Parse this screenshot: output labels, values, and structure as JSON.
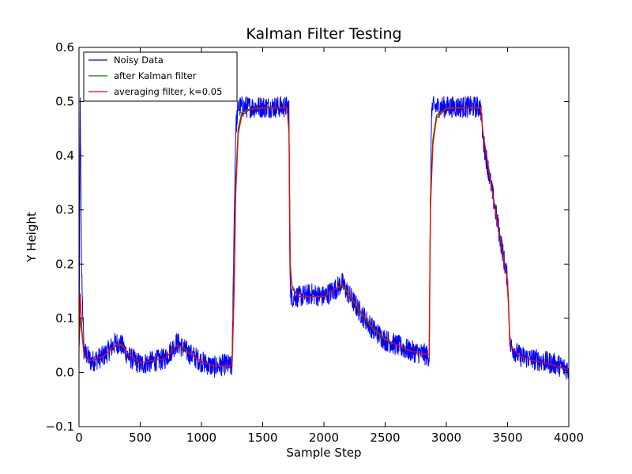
{
  "chart_data": {
    "type": "line",
    "title": "Kalman Filter Testing",
    "xlabel": "Sample Step",
    "ylabel": "Y Height",
    "xlim": [
      0,
      4000
    ],
    "ylim": [
      -0.1,
      0.6
    ],
    "xticks": [
      0,
      500,
      1000,
      1500,
      2000,
      2500,
      3000,
      3500,
      4000
    ],
    "xtick_labels": [
      "0",
      "500",
      "1000",
      "1500",
      "2000",
      "2500",
      "3000",
      "3500",
      "4000"
    ],
    "yticks": [
      -0.1,
      0.0,
      0.1,
      0.2,
      0.3,
      0.4,
      0.5,
      0.6
    ],
    "ytick_labels": [
      "−0.1",
      "0.0",
      "0.1",
      "0.2",
      "0.3",
      "0.4",
      "0.5",
      "0.6"
    ],
    "grid": false,
    "legend_position": "top-left",
    "series": [
      {
        "name": "Noisy Data",
        "color": "#0000ff",
        "noise_amplitude": 0.02,
        "x": [
          0,
          10,
          20,
          40,
          100,
          200,
          300,
          350,
          400,
          500,
          600,
          700,
          800,
          850,
          900,
          1000,
          1100,
          1200,
          1250,
          1265,
          1280,
          1300,
          1350,
          1400,
          1500,
          1600,
          1700,
          1715,
          1720,
          1730,
          1750,
          1800,
          1900,
          2000,
          2100,
          2150,
          2200,
          2300,
          2400,
          2500,
          2600,
          2700,
          2800,
          2860,
          2870,
          2880,
          2890,
          2900,
          3000,
          3100,
          3200,
          3280,
          3300,
          3400,
          3500,
          3520,
          3600,
          3700,
          3800,
          3900,
          4000
        ],
        "y": [
          0.02,
          0.5,
          0.2,
          0.04,
          0.02,
          0.03,
          0.055,
          0.05,
          0.03,
          0.015,
          0.02,
          0.025,
          0.055,
          0.045,
          0.035,
          0.02,
          0.01,
          0.015,
          0.01,
          0.25,
          0.45,
          0.49,
          0.49,
          0.49,
          0.49,
          0.49,
          0.49,
          0.49,
          0.22,
          0.14,
          0.14,
          0.14,
          0.145,
          0.14,
          0.155,
          0.165,
          0.145,
          0.11,
          0.08,
          0.06,
          0.05,
          0.04,
          0.035,
          0.03,
          0.31,
          0.49,
          0.49,
          0.49,
          0.49,
          0.49,
          0.49,
          0.49,
          0.43,
          0.3,
          0.17,
          0.05,
          0.03,
          0.025,
          0.02,
          0.015,
          0.005
        ]
      },
      {
        "name": "after Kalman filter",
        "color": "#008000",
        "x": [
          0,
          10,
          20,
          40,
          60,
          100,
          200,
          300,
          350,
          400,
          500,
          600,
          700,
          800,
          850,
          900,
          1000,
          1100,
          1200,
          1250,
          1265,
          1280,
          1300,
          1330,
          1400,
          1500,
          1600,
          1700,
          1715,
          1725,
          1740,
          1780,
          1800,
          1900,
          2000,
          2100,
          2150,
          2200,
          2300,
          2400,
          2500,
          2600,
          2700,
          2800,
          2860,
          2870,
          2890,
          2920,
          3000,
          3100,
          3200,
          3280,
          3300,
          3400,
          3500,
          3520,
          3600,
          3700,
          3800,
          3900,
          4000
        ],
        "y": [
          0.05,
          0.1,
          0.08,
          0.035,
          0.025,
          0.022,
          0.03,
          0.05,
          0.05,
          0.035,
          0.018,
          0.022,
          0.025,
          0.05,
          0.045,
          0.035,
          0.02,
          0.012,
          0.012,
          0.012,
          0.15,
          0.35,
          0.45,
          0.48,
          0.487,
          0.489,
          0.489,
          0.489,
          0.45,
          0.2,
          0.16,
          0.145,
          0.14,
          0.14,
          0.14,
          0.155,
          0.16,
          0.145,
          0.11,
          0.08,
          0.06,
          0.05,
          0.04,
          0.035,
          0.032,
          0.32,
          0.43,
          0.475,
          0.488,
          0.489,
          0.489,
          0.489,
          0.44,
          0.3,
          0.17,
          0.05,
          0.03,
          0.022,
          0.018,
          0.012,
          0.005
        ]
      },
      {
        "name": "averaging filter, k=0.05",
        "color": "#ff0000",
        "x": [
          0,
          10,
          20,
          40,
          60,
          100,
          200,
          300,
          350,
          400,
          500,
          600,
          700,
          800,
          850,
          900,
          1000,
          1100,
          1200,
          1250,
          1265,
          1280,
          1300,
          1330,
          1400,
          1500,
          1600,
          1700,
          1715,
          1725,
          1740,
          1780,
          1800,
          1900,
          2000,
          2100,
          2150,
          2200,
          2300,
          2400,
          2500,
          2600,
          2700,
          2800,
          2860,
          2870,
          2890,
          2920,
          3000,
          3100,
          3200,
          3280,
          3300,
          3400,
          3500,
          3520,
          3600,
          3700,
          3800,
          3900,
          4000
        ],
        "y": [
          0.05,
          0.145,
          0.09,
          0.035,
          0.025,
          0.022,
          0.03,
          0.05,
          0.052,
          0.035,
          0.018,
          0.022,
          0.025,
          0.05,
          0.047,
          0.035,
          0.02,
          0.012,
          0.012,
          0.012,
          0.13,
          0.33,
          0.44,
          0.475,
          0.486,
          0.488,
          0.488,
          0.488,
          0.44,
          0.19,
          0.155,
          0.145,
          0.14,
          0.14,
          0.14,
          0.155,
          0.162,
          0.147,
          0.112,
          0.082,
          0.062,
          0.05,
          0.04,
          0.035,
          0.032,
          0.3,
          0.42,
          0.47,
          0.487,
          0.488,
          0.488,
          0.488,
          0.44,
          0.3,
          0.17,
          0.05,
          0.03,
          0.022,
          0.018,
          0.012,
          0.005
        ]
      }
    ]
  }
}
